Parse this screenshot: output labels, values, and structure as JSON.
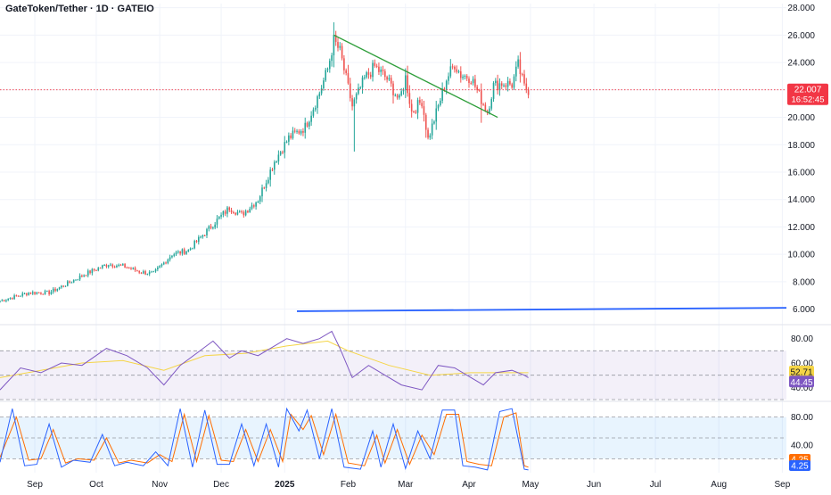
{
  "header": {
    "title": "GateToken/Tether · 1D · GATEIO"
  },
  "colors": {
    "up": "#26a69a",
    "down": "#ef5350",
    "trendline": "#2e9e3a",
    "support_line": "#2962ff",
    "rsi": "#7e57c2",
    "rsi_ma": "#f5d547",
    "stoch_k": "#2962ff",
    "stoch_d": "#ff6d00",
    "price_label": "#f23645",
    "grid": "#f0f3fa",
    "axis_text": "#131722"
  },
  "chart_data": [
    {
      "type": "candlestick",
      "name": "price",
      "price_axis_ticks": [
        "28.000",
        "26.000",
        "24.000",
        "22.000",
        "20.000",
        "18.000",
        "16.000",
        "14.000",
        "12.000",
        "10.000",
        "8.000",
        "6.000"
      ],
      "ylim": [
        5,
        28.3
      ],
      "time_axis_labels": [
        "Sep",
        "Oct",
        "Nov",
        "Dec",
        "2025",
        "Feb",
        "Mar",
        "Apr",
        "May",
        "Jun",
        "Jul",
        "Aug",
        "Sep"
      ],
      "current_price": "22.007",
      "countdown": "16:52:45",
      "anchors": [
        [
          0,
          6.6
        ],
        [
          14,
          7.2
        ],
        [
          24,
          7.2
        ],
        [
          32,
          7.8
        ],
        [
          42,
          8.6
        ],
        [
          53,
          9.3
        ],
        [
          61,
          9.1
        ],
        [
          69,
          8.7
        ],
        [
          75,
          8.6
        ],
        [
          84,
          10.0
        ],
        [
          92,
          10.3
        ],
        [
          99,
          11.4
        ],
        [
          106,
          12.5
        ],
        [
          112,
          13.4
        ],
        [
          118,
          12.9
        ],
        [
          126,
          14.0
        ],
        [
          134,
          16.8
        ],
        [
          141,
          18.5
        ],
        [
          149,
          19.3
        ],
        [
          156,
          21.8
        ],
        [
          160,
          23.5
        ],
        [
          163,
          25.6
        ],
        [
          166,
          24.8
        ],
        [
          172,
          20.8
        ],
        [
          178,
          22.8
        ],
        [
          183,
          23.7
        ],
        [
          189,
          22.8
        ],
        [
          195,
          21.2
        ],
        [
          198,
          22.9
        ],
        [
          201,
          20.4
        ],
        [
          206,
          21.2
        ],
        [
          209,
          18.4
        ],
        [
          214,
          20.8
        ],
        [
          218,
          22.8
        ],
        [
          222,
          23.9
        ],
        [
          225,
          23.1
        ],
        [
          230,
          22.9
        ],
        [
          235,
          21.3
        ],
        [
          238,
          20.4
        ],
        [
          241,
          22.3
        ],
        [
          245,
          22.5
        ],
        [
          250,
          22.4
        ],
        [
          253,
          23.8
        ],
        [
          256,
          22.2
        ],
        [
          258,
          22.0
        ]
      ],
      "trendline": {
        "start": [
          163,
          26.0
        ],
        "end": [
          243,
          20.0
        ]
      },
      "support_line": {
        "start": [
          145,
          5.85
        ],
        "end": [
          384,
          6.1
        ]
      },
      "spikes": [
        {
          "i": 173,
          "low": 17.5
        },
        {
          "i": 235,
          "low": 19.6
        }
      ]
    },
    {
      "type": "line",
      "name": "RSI",
      "axis_ticks": [
        "80.00",
        "60.00",
        "40.00"
      ],
      "ylim": [
        30,
        90
      ],
      "bands": [
        70,
        50,
        30
      ],
      "values_label_main": "52.71",
      "values_label_rsi": "44.45",
      "series_rsi": [
        [
          0,
          38
        ],
        [
          10,
          56
        ],
        [
          20,
          52
        ],
        [
          30,
          60
        ],
        [
          40,
          58
        ],
        [
          52,
          72
        ],
        [
          62,
          66
        ],
        [
          72,
          56
        ],
        [
          80,
          42
        ],
        [
          88,
          58
        ],
        [
          96,
          68
        ],
        [
          104,
          78
        ],
        [
          112,
          64
        ],
        [
          118,
          70
        ],
        [
          126,
          66
        ],
        [
          134,
          74
        ],
        [
          140,
          80
        ],
        [
          148,
          76
        ],
        [
          156,
          80
        ],
        [
          162,
          86
        ],
        [
          166,
          72
        ],
        [
          172,
          48
        ],
        [
          180,
          58
        ],
        [
          188,
          50
        ],
        [
          196,
          42
        ],
        [
          206,
          38
        ],
        [
          214,
          58
        ],
        [
          222,
          56
        ],
        [
          230,
          48
        ],
        [
          236,
          42
        ],
        [
          242,
          52
        ],
        [
          250,
          54
        ],
        [
          256,
          50
        ],
        [
          258,
          48
        ]
      ],
      "series_ma": [
        [
          0,
          48
        ],
        [
          20,
          54
        ],
        [
          40,
          60
        ],
        [
          60,
          62
        ],
        [
          80,
          54
        ],
        [
          100,
          66
        ],
        [
          120,
          68
        ],
        [
          140,
          74
        ],
        [
          160,
          78
        ],
        [
          170,
          70
        ],
        [
          190,
          58
        ],
        [
          210,
          50
        ],
        [
          230,
          52
        ],
        [
          258,
          52
        ]
      ]
    },
    {
      "type": "line",
      "name": "Stochastic",
      "axis_ticks": [
        "80.00",
        "40.00"
      ],
      "ylim": [
        0,
        100
      ],
      "bands": [
        80,
        20
      ],
      "values_label_k": "4.25",
      "values_label_d": "4.25",
      "series_k": [
        [
          0,
          15
        ],
        [
          6,
          92
        ],
        [
          12,
          10
        ],
        [
          18,
          12
        ],
        [
          24,
          70
        ],
        [
          30,
          8
        ],
        [
          36,
          18
        ],
        [
          44,
          15
        ],
        [
          50,
          55
        ],
        [
          56,
          10
        ],
        [
          62,
          15
        ],
        [
          70,
          10
        ],
        [
          76,
          30
        ],
        [
          82,
          10
        ],
        [
          88,
          92
        ],
        [
          94,
          8
        ],
        [
          100,
          90
        ],
        [
          106,
          12
        ],
        [
          112,
          12
        ],
        [
          118,
          70
        ],
        [
          124,
          10
        ],
        [
          130,
          70
        ],
        [
          136,
          8
        ],
        [
          140,
          92
        ],
        [
          146,
          60
        ],
        [
          150,
          90
        ],
        [
          156,
          20
        ],
        [
          162,
          92
        ],
        [
          168,
          8
        ],
        [
          176,
          5
        ],
        [
          182,
          60
        ],
        [
          186,
          8
        ],
        [
          192,
          70
        ],
        [
          198,
          6
        ],
        [
          204,
          60
        ],
        [
          210,
          20
        ],
        [
          216,
          90
        ],
        [
          222,
          90
        ],
        [
          226,
          10
        ],
        [
          232,
          8
        ],
        [
          238,
          4
        ],
        [
          244,
          88
        ],
        [
          250,
          92
        ],
        [
          256,
          5
        ],
        [
          258,
          4
        ]
      ],
      "series_d": [
        [
          0,
          22
        ],
        [
          8,
          80
        ],
        [
          14,
          18
        ],
        [
          20,
          20
        ],
        [
          26,
          62
        ],
        [
          32,
          14
        ],
        [
          38,
          20
        ],
        [
          46,
          18
        ],
        [
          52,
          50
        ],
        [
          58,
          14
        ],
        [
          64,
          18
        ],
        [
          72,
          14
        ],
        [
          78,
          26
        ],
        [
          84,
          16
        ],
        [
          90,
          84
        ],
        [
          96,
          16
        ],
        [
          102,
          82
        ],
        [
          108,
          18
        ],
        [
          114,
          16
        ],
        [
          120,
          62
        ],
        [
          126,
          16
        ],
        [
          132,
          62
        ],
        [
          138,
          16
        ],
        [
          142,
          84
        ],
        [
          148,
          62
        ],
        [
          152,
          82
        ],
        [
          158,
          26
        ],
        [
          164,
          84
        ],
        [
          170,
          14
        ],
        [
          178,
          10
        ],
        [
          184,
          54
        ],
        [
          188,
          14
        ],
        [
          194,
          62
        ],
        [
          200,
          12
        ],
        [
          206,
          54
        ],
        [
          212,
          26
        ],
        [
          218,
          84
        ],
        [
          224,
          84
        ],
        [
          228,
          16
        ],
        [
          234,
          12
        ],
        [
          240,
          10
        ],
        [
          246,
          80
        ],
        [
          252,
          86
        ],
        [
          256,
          10
        ],
        [
          258,
          8
        ]
      ]
    }
  ]
}
